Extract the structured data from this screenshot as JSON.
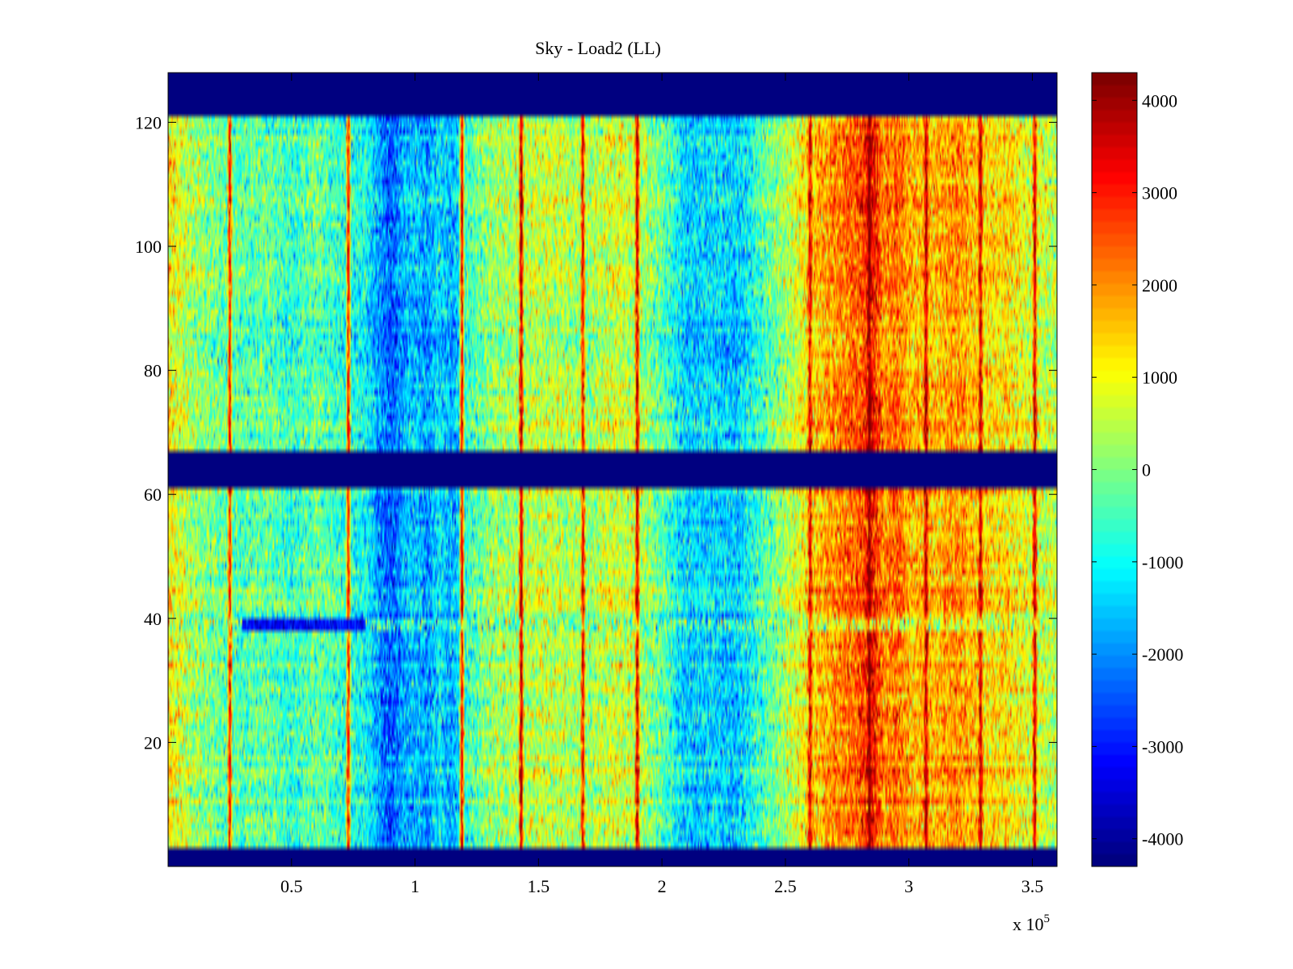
{
  "chart_data": {
    "type": "heatmap",
    "title": "Sky - Load2 (LL)",
    "xlabel": "",
    "ylabel": "",
    "x_exponent_label": "x 10",
    "x_exponent_power": "5",
    "xlim": [
      0,
      3.6
    ],
    "ylim": [
      0,
      128
    ],
    "x_ticks": [
      0.5,
      1,
      1.5,
      2,
      2.5,
      3,
      3.5
    ],
    "x_tick_labels": [
      "0.5",
      "1",
      "1.5",
      "2",
      "2.5",
      "3",
      "3.5"
    ],
    "y_ticks": [
      20,
      40,
      60,
      80,
      100,
      120
    ],
    "y_tick_labels": [
      "20",
      "40",
      "60",
      "80",
      "100",
      "120"
    ],
    "colormap": "jet",
    "clim": [
      -4300,
      4300
    ],
    "colorbar_ticks": [
      4000,
      3000,
      2000,
      1000,
      0,
      -1000,
      -2000,
      -3000,
      -4000
    ],
    "colorbar_tick_labels": [
      "4000",
      "3000",
      "2000",
      "1000",
      "0",
      "-1000",
      "-2000",
      "-3000",
      "-4000"
    ],
    "masked_y_bands": [
      [
        0,
        3
      ],
      [
        61,
        67
      ],
      [
        121,
        128
      ]
    ],
    "masked_value": -4300,
    "column_profile": [
      {
        "x": 0.0,
        "v": 1200
      },
      {
        "x": 0.03,
        "v": 900
      },
      {
        "x": 0.1,
        "v": 300
      },
      {
        "x": 0.2,
        "v": -200
      },
      {
        "x": 0.3,
        "v": -400
      },
      {
        "x": 0.4,
        "v": -300
      },
      {
        "x": 0.5,
        "v": -700
      },
      {
        "x": 0.6,
        "v": -200
      },
      {
        "x": 0.7,
        "v": -700
      },
      {
        "x": 0.8,
        "v": -1000
      },
      {
        "x": 0.85,
        "v": -1900
      },
      {
        "x": 0.9,
        "v": -2600
      },
      {
        "x": 0.95,
        "v": -1800
      },
      {
        "x": 1.0,
        "v": -1500
      },
      {
        "x": 1.05,
        "v": -2000
      },
      {
        "x": 1.1,
        "v": -1200
      },
      {
        "x": 1.15,
        "v": -1800
      },
      {
        "x": 1.2,
        "v": -800
      },
      {
        "x": 1.3,
        "v": 200
      },
      {
        "x": 1.4,
        "v": 300
      },
      {
        "x": 1.5,
        "v": 600
      },
      {
        "x": 1.6,
        "v": 500
      },
      {
        "x": 1.7,
        "v": 200
      },
      {
        "x": 1.8,
        "v": 700
      },
      {
        "x": 1.9,
        "v": 500
      },
      {
        "x": 2.0,
        "v": -300
      },
      {
        "x": 2.1,
        "v": -1500
      },
      {
        "x": 2.2,
        "v": -1300
      },
      {
        "x": 2.3,
        "v": -1600
      },
      {
        "x": 2.4,
        "v": -600
      },
      {
        "x": 2.5,
        "v": 300
      },
      {
        "x": 2.55,
        "v": 800
      },
      {
        "x": 2.6,
        "v": 1300
      },
      {
        "x": 2.7,
        "v": 2000
      },
      {
        "x": 2.8,
        "v": 2500
      },
      {
        "x": 2.85,
        "v": 3300
      },
      {
        "x": 2.9,
        "v": 2000
      },
      {
        "x": 2.95,
        "v": 2400
      },
      {
        "x": 3.0,
        "v": 1700
      },
      {
        "x": 3.1,
        "v": 1600
      },
      {
        "x": 3.2,
        "v": 2000
      },
      {
        "x": 3.3,
        "v": 1300
      },
      {
        "x": 3.4,
        "v": 1300
      },
      {
        "x": 3.5,
        "v": 700
      },
      {
        "x": 3.6,
        "v": 400
      }
    ],
    "vertical_streaks": [
      {
        "x": 0.25,
        "v": 2800
      },
      {
        "x": 0.73,
        "v": 2600
      },
      {
        "x": 1.19,
        "v": 3000
      },
      {
        "x": 1.43,
        "v": 3500
      },
      {
        "x": 1.68,
        "v": 3000
      },
      {
        "x": 1.9,
        "v": 3300
      },
      {
        "x": 2.6,
        "v": 3200
      },
      {
        "x": 2.84,
        "v": 4300
      },
      {
        "x": 3.07,
        "v": 3600
      },
      {
        "x": 3.29,
        "v": 3500
      },
      {
        "x": 3.51,
        "v": 3300
      }
    ],
    "horizontal_anomaly": {
      "y": 39,
      "v": -3200,
      "x_range": [
        0.3,
        0.8
      ]
    }
  }
}
